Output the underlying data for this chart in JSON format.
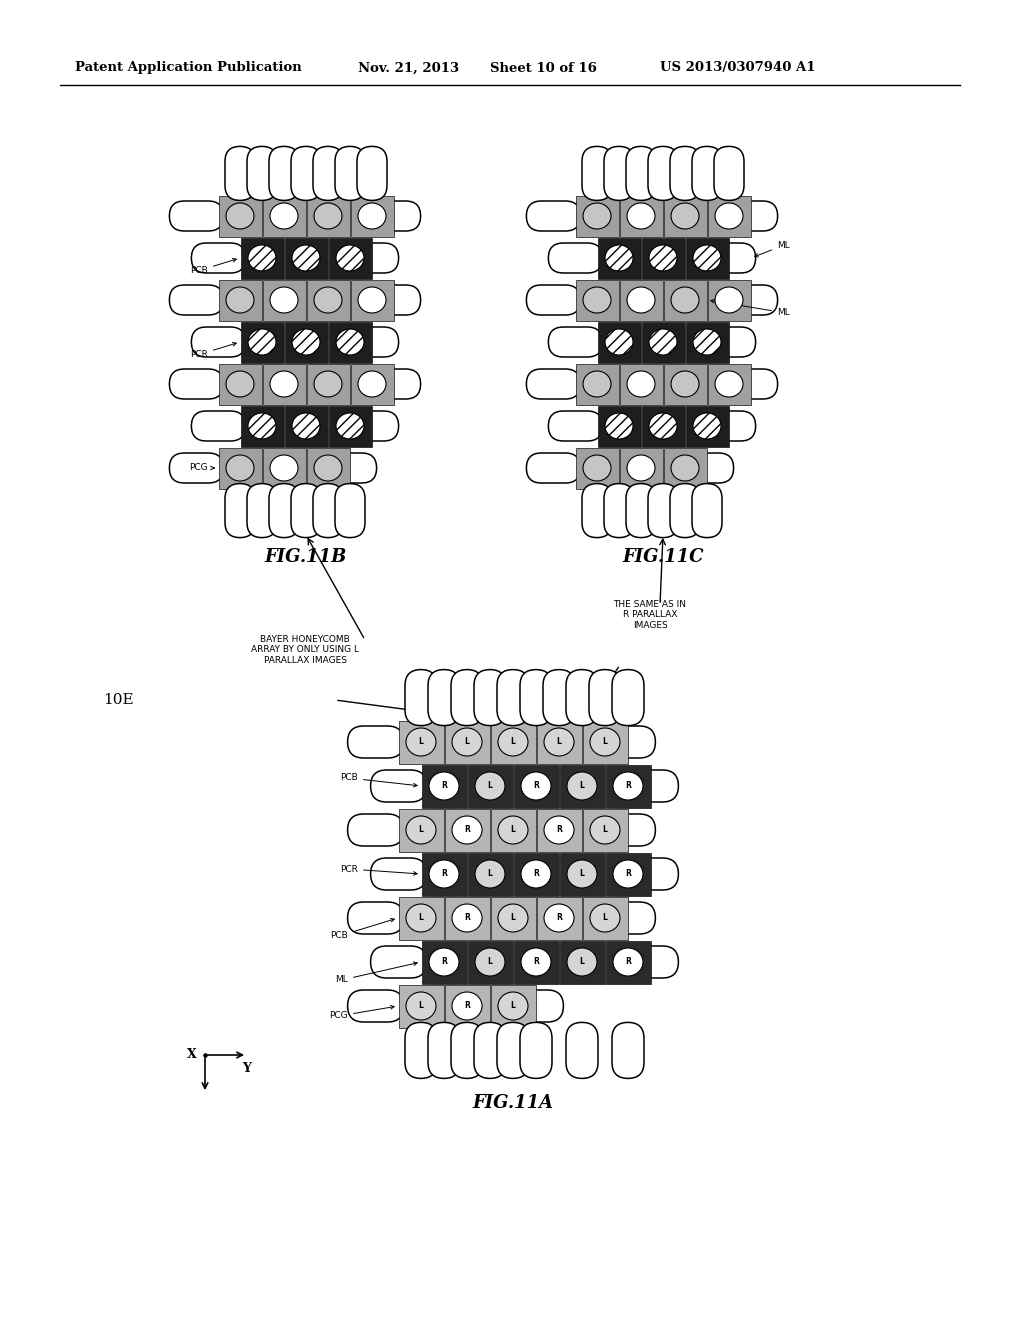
{
  "title_line1": "Patent Application Publication",
  "title_line2": "Nov. 21, 2013",
  "title_line3": "Sheet 10 of 16",
  "title_line4": "US 2013/0307940 A1",
  "fig_label_A": "FIG.11A",
  "fig_label_B": "FIG.11B",
  "fig_label_C": "FIG.11C",
  "label_10E": "10E",
  "bg_color": "#ffffff"
}
